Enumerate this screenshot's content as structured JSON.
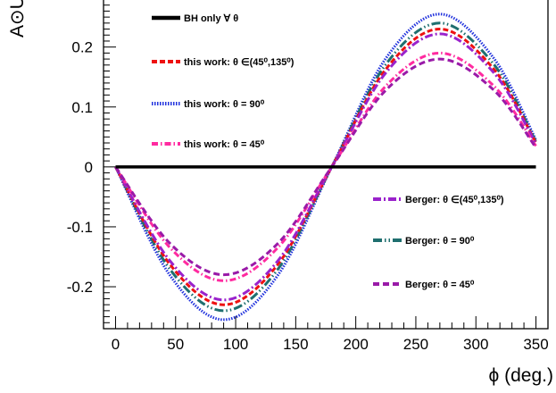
{
  "chart_data": {
    "type": "line",
    "xlabel": "ϕ (deg.)",
    "ylabel": "A⊙U",
    "xlim": [
      -10,
      360
    ],
    "ylim": [
      -0.27,
      0.28
    ],
    "xticks": [
      0,
      50,
      100,
      150,
      200,
      250,
      300,
      350
    ],
    "xtick_labels": [
      "0",
      "50",
      "100",
      "150",
      "200",
      "250",
      "300",
      "350"
    ],
    "yticks": [
      -0.2,
      -0.1,
      0,
      0.1,
      0.2
    ],
    "ytick_labels": [
      "-0.2",
      "-0.1",
      "0",
      "0.1",
      "0.2"
    ],
    "grid": false,
    "x": [
      0,
      45,
      90,
      135,
      180,
      225,
      270,
      315,
      350
    ],
    "series": [
      {
        "name": "BH only ∀ θ",
        "color": "#000000",
        "dash": "solid",
        "width": 3.5,
        "values": [
          0,
          0,
          0,
          0,
          0,
          0,
          0,
          0,
          0
        ]
      },
      {
        "name": "this work: θ ∈(45⁰,135⁰)",
        "color": "#ee1111",
        "dash": "6,3",
        "width": 3,
        "values": [
          0,
          -0.162,
          -0.23,
          -0.163,
          0,
          0.163,
          0.23,
          0.163,
          0.04
        ]
      },
      {
        "name": "this work: θ = 90⁰",
        "color": "#2233dd",
        "dash": "1.5,1.5",
        "width": 3,
        "values": [
          0,
          -0.18,
          -0.255,
          -0.181,
          0,
          0.181,
          0.255,
          0.181,
          0.045
        ]
      },
      {
        "name": "this work: θ = 45⁰",
        "color": "#ff2aa0",
        "dash": "7,3,1.5,3",
        "width": 3,
        "values": [
          0,
          -0.134,
          -0.19,
          -0.135,
          0,
          0.135,
          0.19,
          0.135,
          0.035
        ]
      },
      {
        "name": "Berger: θ ∈(45⁰,135⁰)",
        "color": "#9a22cc",
        "dash": "9,3,2,3",
        "width": 3,
        "values": [
          0,
          -0.156,
          -0.222,
          -0.157,
          0,
          0.157,
          0.222,
          0.157,
          0.039
        ]
      },
      {
        "name": "Berger: θ = 90⁰",
        "color": "#1f6f6f",
        "dash": "10,3,1.5,3,1.5,3",
        "width": 3,
        "values": [
          0,
          -0.17,
          -0.24,
          -0.171,
          0,
          0.171,
          0.24,
          0.171,
          0.042
        ]
      },
      {
        "name": "Berger: θ = 45⁰",
        "color": "#9a1aa8",
        "dash": "7,4",
        "width": 3,
        "values": [
          0,
          -0.127,
          -0.18,
          -0.128,
          0,
          0.128,
          0.18,
          0.128,
          0.032
        ]
      }
    ],
    "legend_placement": "split: upper-left (first four), lower-right (last three)"
  }
}
